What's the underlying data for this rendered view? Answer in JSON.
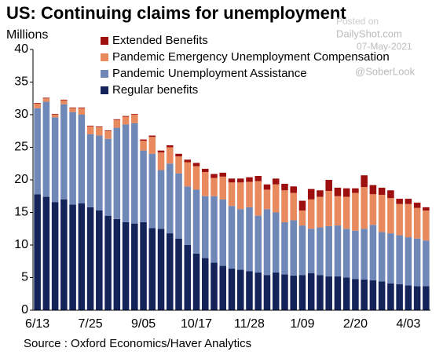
{
  "chart_data": {
    "type": "stacked-bar",
    "title": "US: Continuing claims for unemployment",
    "y_label": "Millions",
    "source": "Source : Oxford Economics/Haver Analytics",
    "categories": [
      "6/13",
      null,
      null,
      null,
      null,
      null,
      "7/25",
      null,
      null,
      null,
      null,
      null,
      "9/05",
      null,
      null,
      null,
      null,
      null,
      "10/17",
      null,
      null,
      null,
      null,
      null,
      "11/28",
      null,
      null,
      null,
      null,
      null,
      "1/09",
      null,
      null,
      null,
      null,
      null,
      "2/20",
      null,
      null,
      null,
      null,
      null,
      "4/03",
      null,
      null
    ],
    "series": [
      {
        "name": "Regular benefits",
        "color": "#14245a",
        "values": [
          17.8,
          17.4,
          16.6,
          17.0,
          16.2,
          16.4,
          15.8,
          15.3,
          14.5,
          14.0,
          13.5,
          13.3,
          13.5,
          12.6,
          12.5,
          11.8,
          11.0,
          10.0,
          8.7,
          8.0,
          7.3,
          6.8,
          6.4,
          6.2,
          6.0,
          5.8,
          5.4,
          5.8,
          5.5,
          5.3,
          5.4,
          5.7,
          5.4,
          5.2,
          5.2,
          5.0,
          4.8,
          4.7,
          4.6,
          4.4,
          4.1,
          4.0,
          3.8,
          3.7,
          3.7
        ]
      },
      {
        "name": "Pandemic Unemployment Assistance",
        "color": "#7088b8",
        "values": [
          13.2,
          14.6,
          13.0,
          14.6,
          14.2,
          13.6,
          11.2,
          11.5,
          11.8,
          14.0,
          15.0,
          15.4,
          11.0,
          11.4,
          9.0,
          10.7,
          10.0,
          9.0,
          9.8,
          9.5,
          10.2,
          10.2,
          9.6,
          9.3,
          9.8,
          8.7,
          10.1,
          9.2,
          8.0,
          8.5,
          7.6,
          6.8,
          7.3,
          7.7,
          7.8,
          7.5,
          7.4,
          7.8,
          8.5,
          7.6,
          7.7,
          7.5,
          7.4,
          7.3,
          7.0
        ]
      },
      {
        "name": "Pandemic Emergency Unemployment Compensation",
        "color": "#e9895e",
        "values": [
          0.7,
          0.5,
          0.4,
          0.6,
          0.6,
          1.0,
          1.2,
          1.3,
          1.2,
          1.2,
          1.2,
          1.3,
          1.5,
          2.6,
          2.7,
          2.5,
          2.6,
          3.7,
          3.6,
          3.7,
          2.8,
          3.5,
          3.6,
          4.1,
          3.9,
          5.3,
          3.0,
          4.3,
          4.9,
          4.2,
          2.3,
          4.5,
          4.7,
          5.4,
          4.5,
          4.9,
          5.8,
          6.4,
          4.7,
          5.7,
          5.4,
          4.8,
          5.1,
          4.7,
          4.6
        ]
      },
      {
        "name": "Extended Benefits",
        "color": "#9e0f0f",
        "values": [
          0.1,
          0.1,
          0.1,
          0.1,
          0.1,
          0.1,
          0.1,
          0.1,
          0.1,
          0.1,
          0.1,
          0.1,
          0.2,
          0.2,
          0.3,
          0.3,
          0.4,
          0.4,
          0.5,
          0.5,
          0.6,
          0.6,
          0.6,
          0.6,
          0.7,
          0.8,
          0.8,
          0.9,
          1.0,
          1.0,
          1.5,
          1.6,
          1.0,
          1.7,
          1.3,
          1.3,
          0.7,
          1.8,
          1.4,
          1.1,
          1.2,
          0.8,
          0.8,
          0.8,
          0.5
        ]
      }
    ],
    "ylim": [
      0,
      40
    ],
    "yticks": [
      0,
      5,
      10,
      15,
      20,
      25,
      30,
      35,
      40
    ],
    "grid": false,
    "legend": "top"
  },
  "watermark": {
    "line1": "Posted on",
    "line2": "DailyShot.com",
    "line3": "07-May-2021",
    "line4": "@SoberLook"
  }
}
